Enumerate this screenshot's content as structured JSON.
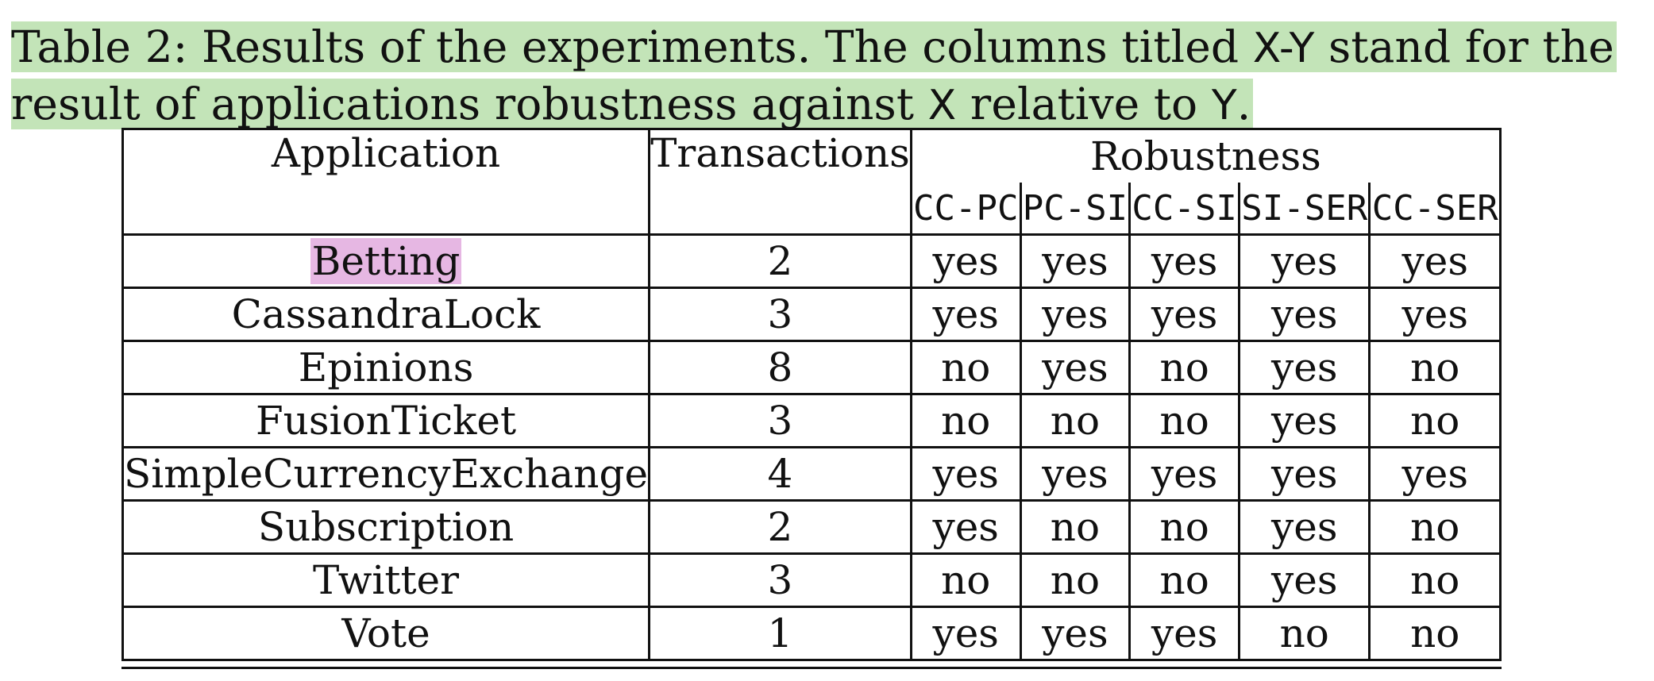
{
  "caption": {
    "part1": "Table 2: Results of the experiments. The columns titled ",
    "xy": "X-Y",
    "part2": " stand for the result of applications robustness against ",
    "x": "X",
    "part3": " relative to ",
    "y": "Y",
    "part4": "."
  },
  "table": {
    "headers": {
      "application": "Application",
      "transactions": "Transactions",
      "robustness": "Robustness",
      "sub": [
        "CC-PC",
        "PC-SI",
        "CC-SI",
        "SI-SER",
        "CC-SER"
      ]
    },
    "rows": [
      {
        "app": "Betting",
        "tx": "2",
        "vals": [
          "yes",
          "yes",
          "yes",
          "yes",
          "yes"
        ]
      },
      {
        "app": "CassandraLock",
        "tx": "3",
        "vals": [
          "yes",
          "yes",
          "yes",
          "yes",
          "yes"
        ]
      },
      {
        "app": "Epinions",
        "tx": "8",
        "vals": [
          "no",
          "yes",
          "no",
          "yes",
          "no"
        ]
      },
      {
        "app": "FusionTicket",
        "tx": "3",
        "vals": [
          "no",
          "no",
          "no",
          "yes",
          "no"
        ]
      },
      {
        "app": "SimpleCurrencyExchange",
        "tx": "4",
        "vals": [
          "yes",
          "yes",
          "yes",
          "yes",
          "yes"
        ]
      },
      {
        "app": "Subscription",
        "tx": "2",
        "vals": [
          "yes",
          "no",
          "no",
          "yes",
          "no"
        ]
      },
      {
        "app": "Twitter",
        "tx": "3",
        "vals": [
          "no",
          "no",
          "no",
          "yes",
          "no"
        ]
      },
      {
        "app": "Vote",
        "tx": "1",
        "vals": [
          "yes",
          "yes",
          "yes",
          "no",
          "no"
        ]
      }
    ]
  },
  "highlights": {
    "caption_color": "#c3e4b8",
    "betting_color": "#e6b7e3"
  }
}
